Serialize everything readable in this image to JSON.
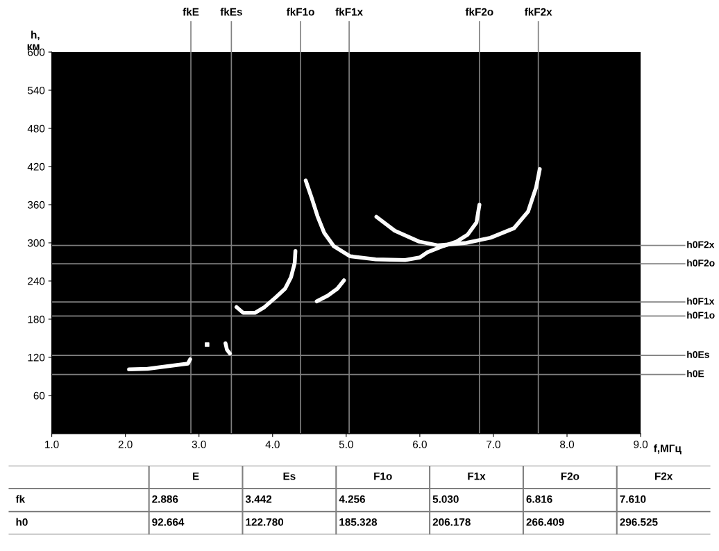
{
  "chart_data": [
    {
      "type": "line",
      "xlabel": "f,МГц",
      "ylabel": "h,\nкм",
      "xlim": [
        1,
        9
      ],
      "ylim": [
        0,
        600
      ],
      "xticks": [
        {
          "value": 1,
          "label": "1.0"
        },
        {
          "value": 2,
          "label": "2.0"
        },
        {
          "value": 3,
          "label": "3.0"
        },
        {
          "value": 4,
          "label": "4.0"
        },
        {
          "value": 5,
          "label": "5.0"
        },
        {
          "value": 6,
          "label": "6.0"
        },
        {
          "value": 7,
          "label": "7.0"
        },
        {
          "value": 8,
          "label": "8.0"
        },
        {
          "value": 9,
          "label": "9.0"
        }
      ],
      "yticks": [
        60,
        120,
        180,
        240,
        300,
        360,
        420,
        480,
        540,
        600
      ],
      "grid": false,
      "legend": false,
      "series": [
        {
          "color": "#ffffff",
          "x": [
            2.05,
            2.3,
            2.5,
            2.7,
            2.85,
            2.88
          ],
          "values": [
            101,
            102,
            105,
            108,
            110,
            117
          ]
        },
        {
          "color": "#fefefe",
          "x": [
            3.36,
            3.38,
            3.42
          ],
          "values": [
            142,
            132,
            126
          ]
        },
        {
          "color": "#fdfdfd",
          "x": [
            3.51,
            3.6,
            3.76,
            3.89,
            4.04,
            4.17,
            4.25,
            4.3,
            4.31
          ],
          "values": [
            199,
            190,
            190,
            199,
            214,
            228,
            246,
            268,
            287
          ]
        },
        {
          "color": "#fcfcfc",
          "x": [
            4.6,
            4.75,
            4.88,
            4.97
          ],
          "values": [
            208,
            217,
            228,
            241
          ]
        },
        {
          "color": "#fbfbfb",
          "x": [
            4.45,
            4.53,
            4.61,
            4.7,
            4.83,
            5.05,
            5.4,
            5.8,
            6.0,
            6.1,
            6.32,
            6.5,
            6.65,
            6.77,
            6.81
          ],
          "values": [
            398,
            371,
            342,
            316,
            295,
            279,
            274,
            273,
            277,
            285,
            295,
            302,
            313,
            332,
            360
          ]
        },
        {
          "color": "#fafafa",
          "x": [
            5.41,
            5.66,
            5.99,
            6.25,
            6.63,
            6.96,
            7.28,
            7.47,
            7.58,
            7.63
          ],
          "values": [
            341,
            319,
            302,
            296,
            300,
            308,
            323,
            349,
            387,
            416
          ]
        },
        {
          "color": "#f9f9f9",
          "type": "scatter",
          "marker": "square",
          "x": [
            3.11
          ],
          "values": [
            140
          ]
        }
      ],
      "ref_lines": [
        {
          "axis": "x",
          "value": 2.89,
          "label": "fkE",
          "color": "#808080"
        },
        {
          "axis": "x",
          "value": 3.44,
          "label": "fkEs",
          "color": "#808080"
        },
        {
          "axis": "x",
          "value": 4.38,
          "label": "fkF1o",
          "color": "#808080"
        },
        {
          "axis": "x",
          "value": 5.04,
          "label": "fkF1x",
          "color": "#808080"
        },
        {
          "axis": "x",
          "value": 6.81,
          "label": "fkF2o",
          "color": "#808080"
        },
        {
          "axis": "x",
          "value": 7.61,
          "label": "fkF2x",
          "color": "#808080"
        },
        {
          "axis": "y",
          "value": 296,
          "label": "h0F2x",
          "color": "#808080"
        },
        {
          "axis": "y",
          "value": 267,
          "label": "h0F2o",
          "color": "#808080"
        },
        {
          "axis": "y",
          "value": 207,
          "label": "h0F1x",
          "color": "#808080"
        },
        {
          "axis": "y",
          "value": 185,
          "label": "h0F1o",
          "color": "#808080"
        },
        {
          "axis": "y",
          "value": 123,
          "label": "h0Es",
          "color": "#808080"
        },
        {
          "axis": "y",
          "value": 93,
          "label": "h0E",
          "color": "#808080"
        }
      ]
    },
    {
      "type": "other",
      "categories": [
        null,
        "E",
        "Es",
        "F1o",
        "F1x",
        "F2o",
        "F2x"
      ],
      "y_categories": [
        "fk",
        "h0"
      ],
      "cell_labels": [
        [
          "2.886",
          "3.442",
          "4.256",
          "5.030",
          "6.816",
          "7.610"
        ],
        [
          "92.664",
          "122.780",
          "185.328",
          "206.178",
          "266.409",
          "296.525"
        ]
      ]
    }
  ]
}
